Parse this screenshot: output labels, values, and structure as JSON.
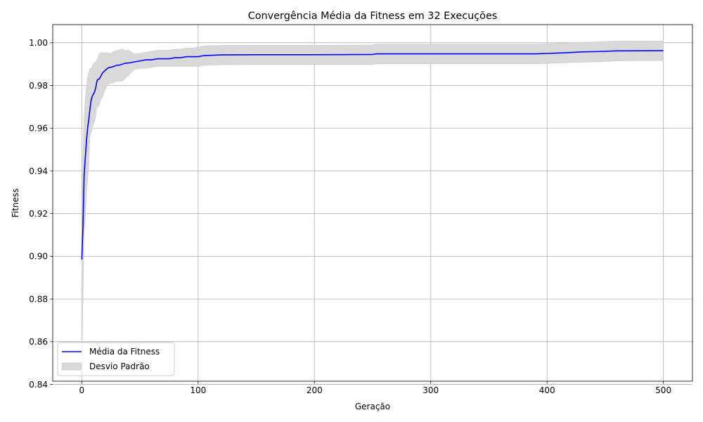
{
  "chart_data": {
    "type": "line",
    "title": "Convergência Média da Fitness em 32 Execuções",
    "xlabel": "Geração",
    "ylabel": "Fitness",
    "xlim": [
      -25,
      525
    ],
    "ylim": [
      0.8415,
      1.0085
    ],
    "xticks": [
      0,
      100,
      200,
      300,
      400,
      500
    ],
    "yticks": [
      0.84,
      0.86,
      0.88,
      0.9,
      0.92,
      0.94,
      0.96,
      0.98,
      1.0
    ],
    "xtick_labels": [
      "0",
      "100",
      "200",
      "300",
      "400",
      "500"
    ],
    "ytick_labels": [
      "0.84",
      "0.86",
      "0.88",
      "0.90",
      "0.92",
      "0.94",
      "0.96",
      "0.98",
      "1.00"
    ],
    "grid": true,
    "legend_position": "lower-left",
    "colors": {
      "mean": "#0000ff",
      "band": "#d9d9d9",
      "band_edge": "#c8c8c8",
      "grid": "#b0b0b0"
    },
    "series": [
      {
        "name": "Média da Fitness",
        "kind": "line",
        "x": [
          0,
          1,
          2,
          3,
          4,
          5,
          6,
          7,
          8,
          9,
          10,
          11,
          12,
          13,
          14,
          15,
          16,
          17,
          18,
          19,
          20,
          22,
          24,
          25,
          28,
          30,
          32,
          35,
          38,
          40,
          45,
          50,
          55,
          60,
          65,
          70,
          75,
          80,
          85,
          90,
          95,
          100,
          105,
          120,
          150,
          200,
          250,
          253,
          300,
          350,
          390,
          400,
          415,
          430,
          445,
          460,
          500
        ],
        "y": [
          0.8985,
          0.914,
          0.938,
          0.946,
          0.954,
          0.96,
          0.964,
          0.969,
          0.973,
          0.975,
          0.976,
          0.977,
          0.979,
          0.982,
          0.983,
          0.983,
          0.984,
          0.985,
          0.986,
          0.9865,
          0.987,
          0.988,
          0.9885,
          0.9885,
          0.989,
          0.9895,
          0.9895,
          0.99,
          0.9905,
          0.9905,
          0.991,
          0.9915,
          0.992,
          0.992,
          0.9925,
          0.9925,
          0.9925,
          0.993,
          0.993,
          0.9935,
          0.9935,
          0.9935,
          0.994,
          0.9943,
          0.9944,
          0.9944,
          0.9945,
          0.9948,
          0.9948,
          0.9948,
          0.9948,
          0.995,
          0.9953,
          0.9957,
          0.9959,
          0.9962,
          0.9963
        ]
      },
      {
        "name": "Desvio Padrão",
        "kind": "band",
        "x": [
          0,
          1,
          2,
          3,
          4,
          5,
          6,
          7,
          8,
          9,
          10,
          11,
          12,
          13,
          14,
          15,
          16,
          18,
          20,
          22,
          24,
          25,
          28,
          30,
          32,
          35,
          38,
          40,
          45,
          50,
          55,
          60,
          65,
          70,
          75,
          80,
          85,
          90,
          95,
          100,
          105,
          120,
          150,
          200,
          250,
          253,
          300,
          350,
          390,
          400,
          415,
          430,
          445,
          460,
          500
        ],
        "upper": [
          0.8985,
          0.948,
          0.965,
          0.974,
          0.979,
          0.984,
          0.986,
          0.988,
          0.988,
          0.989,
          0.99,
          0.991,
          0.991,
          0.992,
          0.993,
          0.995,
          0.9953,
          0.9953,
          0.9953,
          0.9953,
          0.995,
          0.995,
          0.996,
          0.9963,
          0.9966,
          0.997,
          0.9963,
          0.9966,
          0.9948,
          0.995,
          0.9955,
          0.996,
          0.9965,
          0.9965,
          0.9965,
          0.997,
          0.997,
          0.9975,
          0.9975,
          0.998,
          0.9985,
          0.9988,
          0.9988,
          0.9988,
          0.999,
          0.9993,
          0.9993,
          0.9993,
          0.9993,
          0.9995,
          0.9998,
          1.0002,
          1.0004,
          1.0008,
          1.0008
        ],
        "lower": [
          0.852,
          0.88,
          0.911,
          0.918,
          0.93,
          0.936,
          0.944,
          0.956,
          0.958,
          0.96,
          0.962,
          0.963,
          0.966,
          0.97,
          0.97,
          0.971,
          0.973,
          0.975,
          0.978,
          0.98,
          0.981,
          0.981,
          0.9815,
          0.982,
          0.982,
          0.982,
          0.984,
          0.9845,
          0.9875,
          0.988,
          0.988,
          0.9885,
          0.989,
          0.989,
          0.989,
          0.989,
          0.989,
          0.989,
          0.989,
          0.989,
          0.9895,
          0.9897,
          0.9898,
          0.9898,
          0.9898,
          0.9901,
          0.9901,
          0.9901,
          0.9901,
          0.9903,
          0.9906,
          0.9909,
          0.9911,
          0.9915,
          0.9917
        ]
      }
    ],
    "legend": [
      {
        "label": "Média da Fitness",
        "kind": "line"
      },
      {
        "label": "Desvio Padrão",
        "kind": "band"
      }
    ]
  }
}
